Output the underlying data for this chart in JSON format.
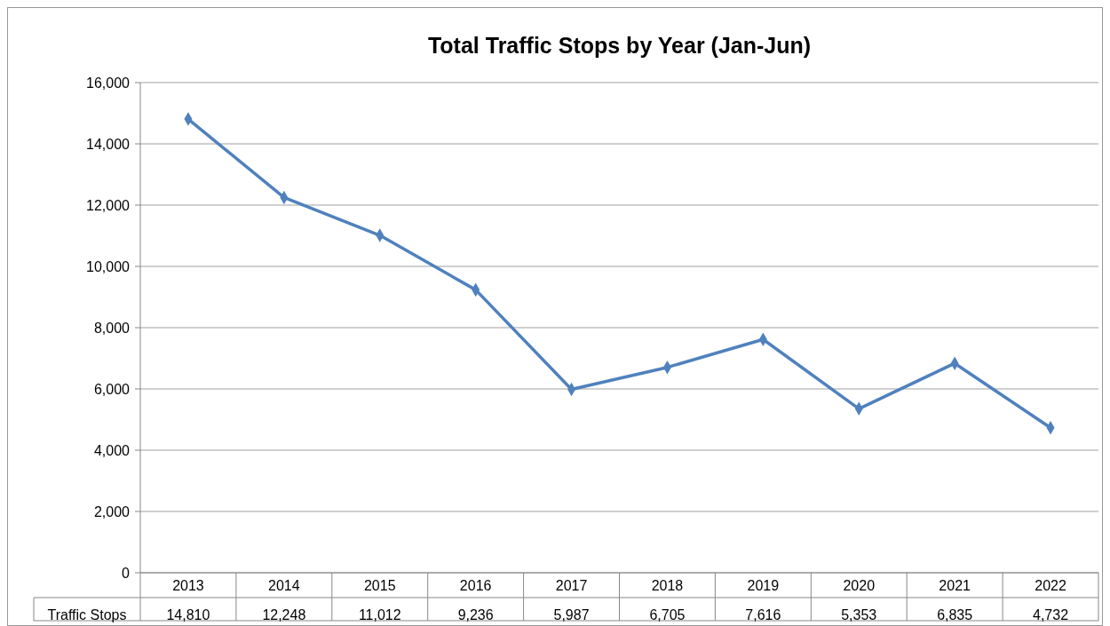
{
  "chart_data": {
    "type": "line",
    "title": "Total Traffic Stops by Year (Jan-Jun)",
    "categories": [
      "2013",
      "2014",
      "2015",
      "2016",
      "2017",
      "2018",
      "2019",
      "2020",
      "2021",
      "2022"
    ],
    "series": [
      {
        "name": "Traffic Stops",
        "color": "#4f81bd",
        "values": [
          14810,
          12248,
          11012,
          9236,
          5987,
          6705,
          7616,
          5353,
          6835,
          4732
        ],
        "value_labels": [
          "14,810",
          "12,248",
          "11,012",
          "9,236",
          "5,987",
          "6,705",
          "7,616",
          "5,353",
          "6,835",
          "4,732"
        ]
      }
    ],
    "ylim": [
      0,
      16000
    ],
    "yticks": [
      {
        "value": 0,
        "label": "0"
      },
      {
        "value": 2000,
        "label": "2,000"
      },
      {
        "value": 4000,
        "label": "4,000"
      },
      {
        "value": 6000,
        "label": "6,000"
      },
      {
        "value": 8000,
        "label": "8,000"
      },
      {
        "value": 10000,
        "label": "10,000"
      },
      {
        "value": 12000,
        "label": "12,000"
      },
      {
        "value": 14000,
        "label": "14,000"
      },
      {
        "value": 16000,
        "label": "16,000"
      }
    ],
    "grid": "y",
    "marker": "diamond",
    "line_style": "solid"
  }
}
